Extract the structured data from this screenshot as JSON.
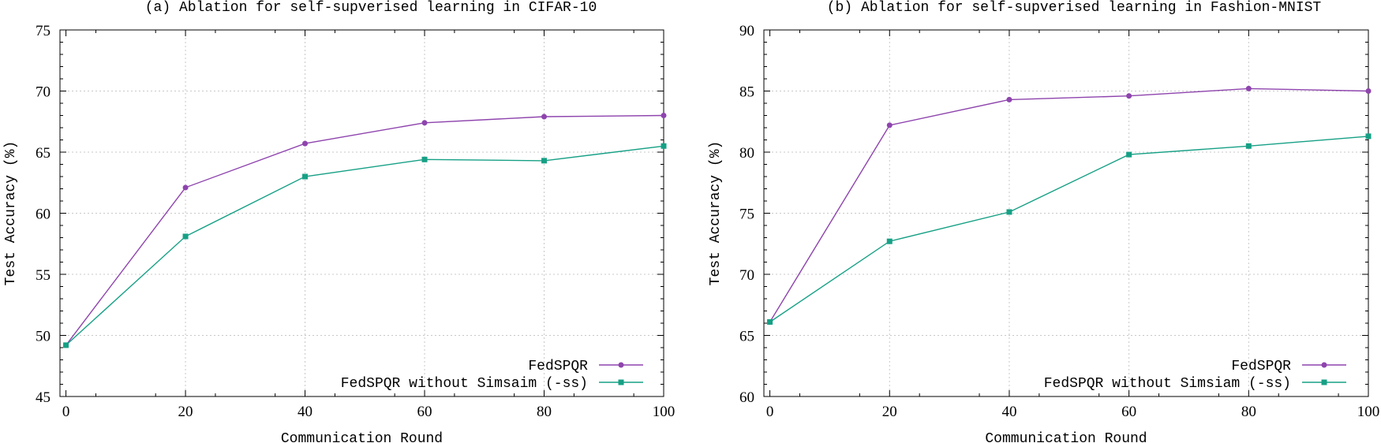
{
  "chart_data": [
    {
      "type": "line",
      "title": "(a) Ablation for self-supverised learning in CIFAR-10",
      "xlabel": "Communication Round",
      "ylabel": "Test Accuracy (%)",
      "xlim": [
        -1,
        100
      ],
      "ylim": [
        45,
        75
      ],
      "xticks": [
        0,
        20,
        40,
        60,
        80,
        100
      ],
      "yticks": [
        45,
        50,
        55,
        60,
        65,
        70,
        75
      ],
      "grid": true,
      "legend_position": "bottom-right",
      "x": [
        0,
        20,
        40,
        60,
        80,
        100
      ],
      "series": [
        {
          "name": "FedSPQR",
          "color": "#8e44ad",
          "marker": "circle",
          "values": [
            49.2,
            62.1,
            65.7,
            67.4,
            67.9,
            68.0
          ]
        },
        {
          "name": "FedSPQR without Simsaim (-ss)",
          "color": "#16a085",
          "marker": "square",
          "values": [
            49.2,
            58.1,
            63.0,
            64.4,
            64.3,
            65.5
          ]
        }
      ]
    },
    {
      "type": "line",
      "title": "(b) Ablation for self-supverised learning in Fashion-MNIST",
      "xlabel": "Communication Round",
      "ylabel": "Test Accuracy (%)",
      "xlim": [
        -1,
        100
      ],
      "ylim": [
        60,
        90
      ],
      "xticks": [
        0,
        20,
        40,
        60,
        80,
        100
      ],
      "yticks": [
        60,
        65,
        70,
        75,
        80,
        85,
        90
      ],
      "grid": true,
      "legend_position": "bottom-right",
      "x": [
        0,
        20,
        40,
        60,
        80,
        100
      ],
      "series": [
        {
          "name": "FedSPQR",
          "color": "#8e44ad",
          "marker": "circle",
          "values": [
            66.1,
            82.2,
            84.3,
            84.6,
            85.2,
            85.0
          ]
        },
        {
          "name": "FedSPQR without Simsiam (-ss)",
          "color": "#16a085",
          "marker": "square",
          "values": [
            66.1,
            72.7,
            75.1,
            79.8,
            80.5,
            81.3
          ]
        }
      ]
    }
  ]
}
